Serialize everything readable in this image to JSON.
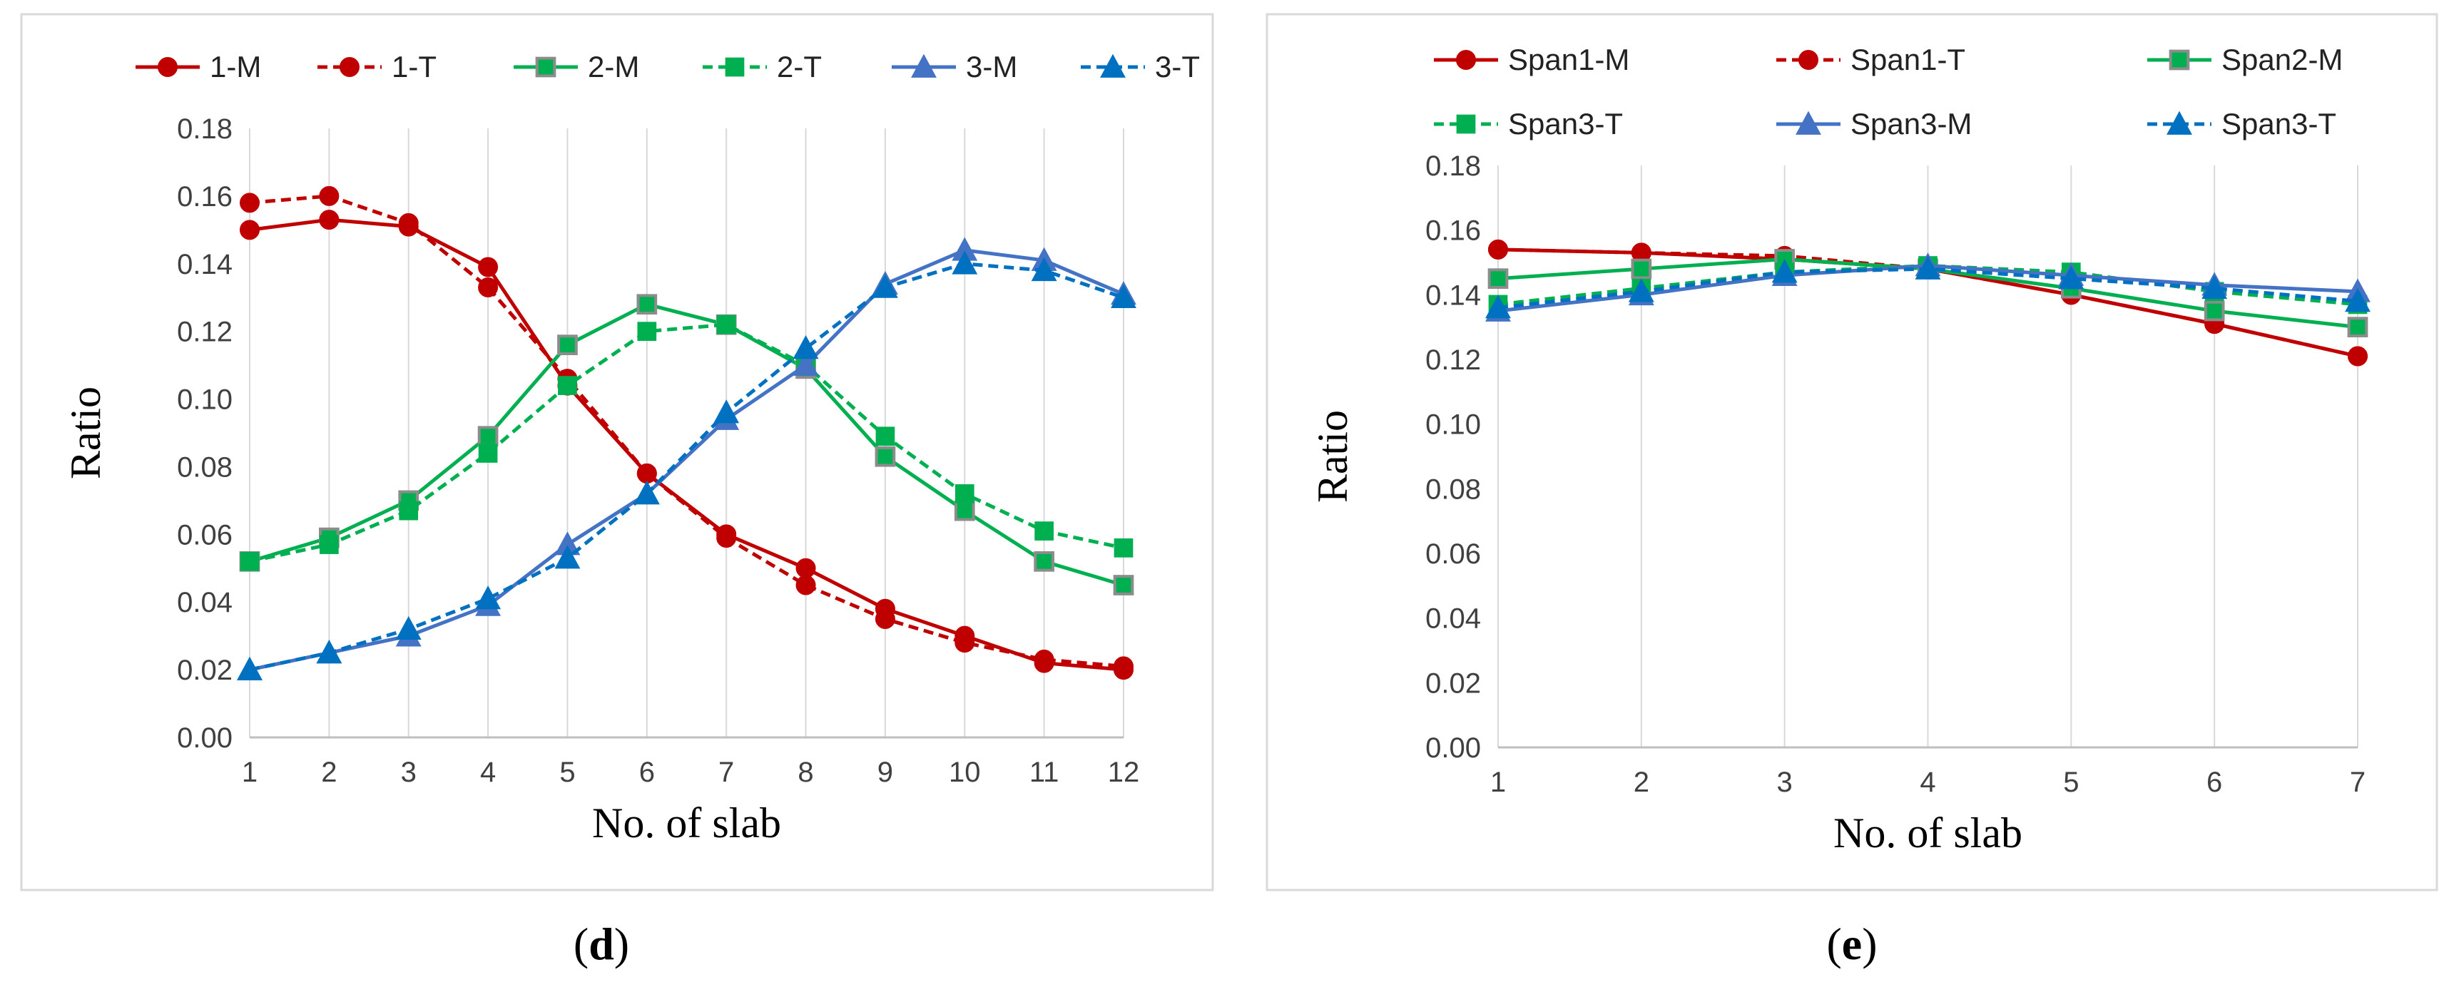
{
  "chart_data": [
    {
      "type": "line",
      "caption_letter": "d",
      "xlabel": "No. of slab",
      "ylabel": "Ratio",
      "ylim": [
        0,
        0.18
      ],
      "ytick_step": 0.02,
      "x": [
        1,
        2,
        3,
        4,
        5,
        6,
        7,
        8,
        9,
        10,
        11,
        12
      ],
      "grid": "vertical",
      "legend": "top",
      "series": [
        {
          "name": "1-M",
          "color": "#c00000",
          "dash": false,
          "marker": "circle",
          "values": [
            0.15,
            0.153,
            0.151,
            0.139,
            0.104,
            0.078,
            0.06,
            0.05,
            0.038,
            0.03,
            0.022,
            0.02
          ]
        },
        {
          "name": "1-T",
          "color": "#c00000",
          "dash": true,
          "marker": "circle",
          "values": [
            0.158,
            0.16,
            0.152,
            0.133,
            0.106,
            0.078,
            0.059,
            0.045,
            0.035,
            0.028,
            0.023,
            0.021
          ]
        },
        {
          "name": "2-M",
          "color": "#00b050",
          "dash": false,
          "marker": "square-outline",
          "values": [
            0.052,
            0.059,
            0.07,
            0.089,
            0.116,
            0.128,
            0.122,
            0.109,
            0.083,
            0.067,
            0.052,
            0.045
          ]
        },
        {
          "name": "2-T",
          "color": "#00b050",
          "dash": true,
          "marker": "square",
          "values": [
            0.052,
            0.057,
            0.067,
            0.084,
            0.104,
            0.12,
            0.122,
            0.11,
            0.089,
            0.072,
            0.061,
            0.056
          ]
        },
        {
          "name": "3-M",
          "color": "#4472c4",
          "dash": false,
          "marker": "triangle",
          "values": [
            0.02,
            0.025,
            0.03,
            0.039,
            0.057,
            0.072,
            0.094,
            0.11,
            0.134,
            0.144,
            0.141,
            0.131
          ]
        },
        {
          "name": "3-T",
          "color": "#0070c0",
          "dash": true,
          "marker": "triangle",
          "values": [
            0.02,
            0.025,
            0.032,
            0.041,
            0.053,
            0.072,
            0.096,
            0.115,
            0.133,
            0.14,
            0.138,
            0.13
          ]
        }
      ]
    },
    {
      "type": "line",
      "caption_letter": "e",
      "xlabel": "No. of slab",
      "ylabel": "Ratio",
      "ylim": [
        0,
        0.18
      ],
      "ytick_step": 0.02,
      "x": [
        1,
        2,
        3,
        4,
        5,
        6,
        7
      ],
      "grid": "vertical",
      "legend": "top",
      "series": [
        {
          "name": "Span1-M",
          "color": "#c00000",
          "dash": false,
          "marker": "circle",
          "values": [
            0.154,
            0.153,
            0.151,
            0.148,
            0.14,
            0.131,
            0.121
          ]
        },
        {
          "name": "Span1-T",
          "color": "#c00000",
          "dash": true,
          "marker": "circle",
          "values": [
            0.154,
            0.153,
            0.152,
            0.148,
            0.14,
            0.131,
            0.121
          ]
        },
        {
          "name": "Span2-M",
          "color": "#00b050",
          "dash": false,
          "marker": "square-outline",
          "values": [
            0.145,
            0.148,
            0.151,
            0.148,
            0.142,
            0.135,
            0.13
          ]
        },
        {
          "name": "Span3-T",
          "color": "#00b050",
          "dash": true,
          "marker": "square",
          "values": [
            0.137,
            0.142,
            0.147,
            0.149,
            0.147,
            0.141,
            0.137
          ]
        },
        {
          "name": "Span3-M",
          "color": "#4472c4",
          "dash": false,
          "marker": "triangle",
          "values": [
            0.135,
            0.14,
            0.146,
            0.149,
            0.146,
            0.143,
            0.141
          ]
        },
        {
          "name": "Span3-T",
          "color": "#0070c0",
          "dash": true,
          "marker": "triangle",
          "values": [
            0.136,
            0.141,
            0.147,
            0.148,
            0.145,
            0.142,
            0.138
          ]
        }
      ]
    }
  ]
}
